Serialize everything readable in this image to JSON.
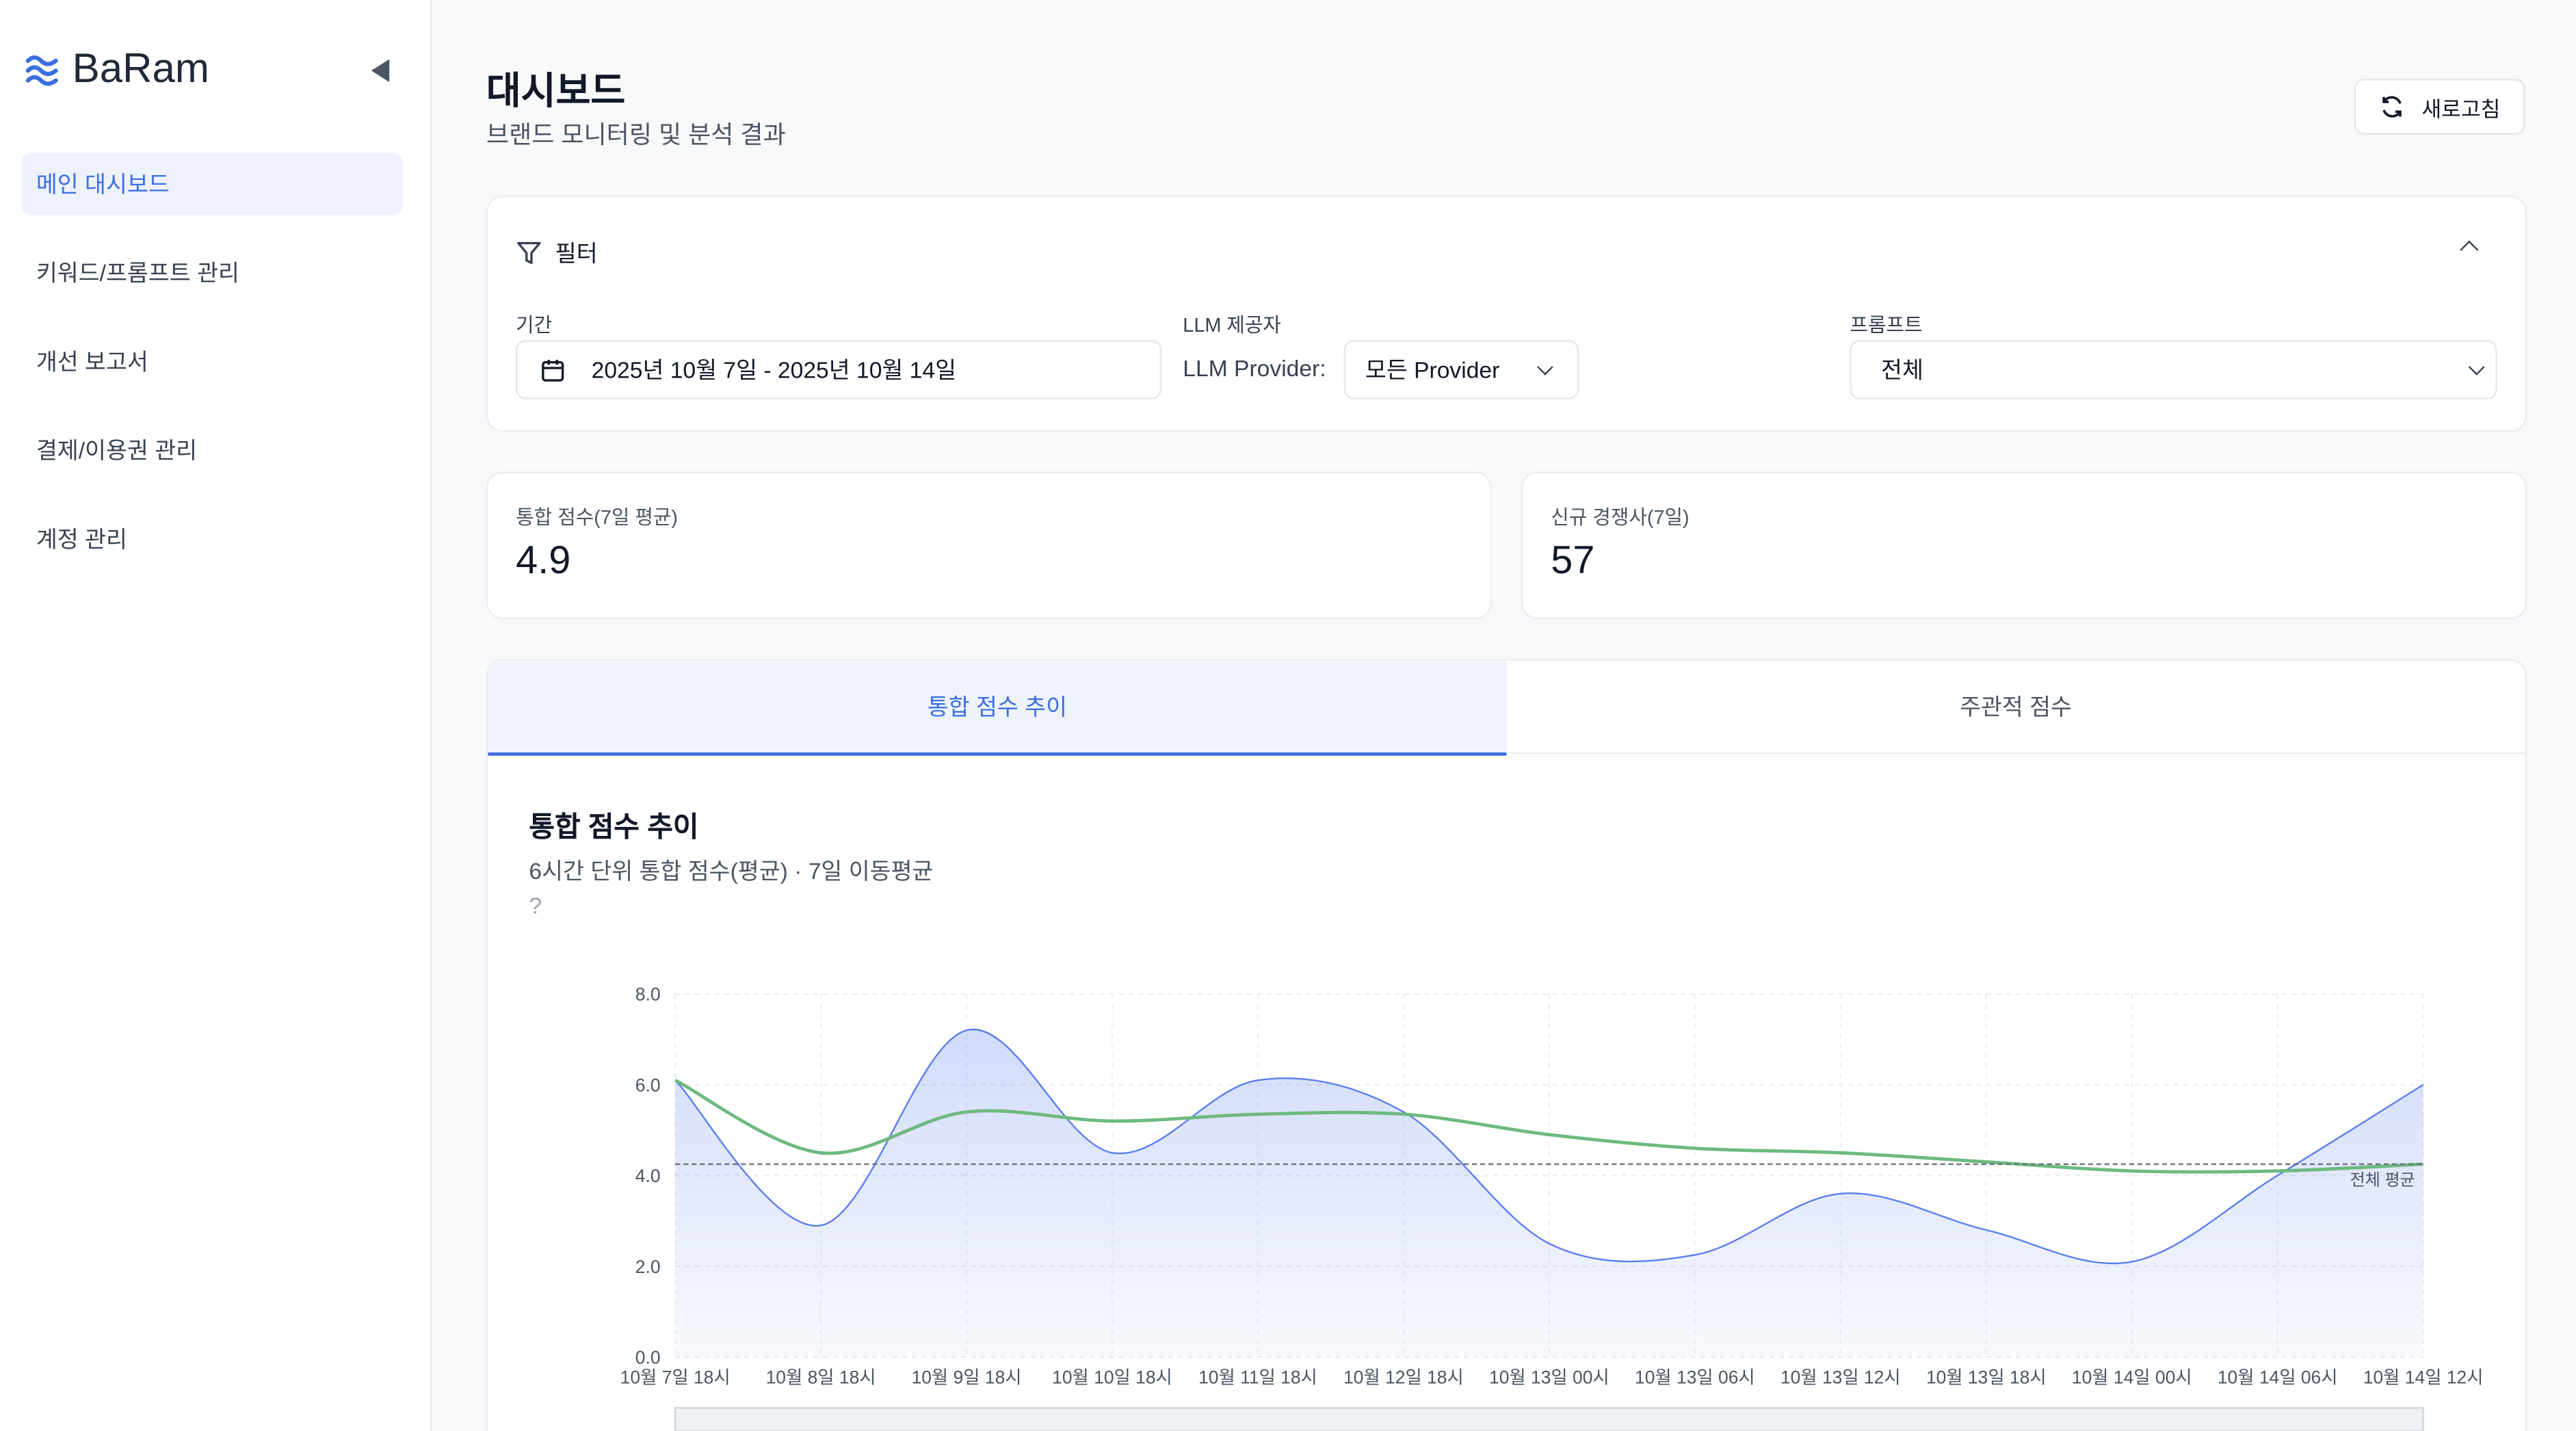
{
  "app": {
    "name": "BaRam"
  },
  "sidebar": {
    "items": [
      {
        "label": "메인 대시보드",
        "active": true
      },
      {
        "label": "키워드/프롬프트 관리"
      },
      {
        "label": "개선 보고서"
      },
      {
        "label": "결제/이용권 관리"
      },
      {
        "label": "계정 관리"
      }
    ]
  },
  "header": {
    "title": "대시보드",
    "subtitle": "브랜드 모니터링 및 분석 결과",
    "refresh_label": "새로고침"
  },
  "filter": {
    "title": "필터",
    "period_label": "기간",
    "period_value": "2025년 10월 7일 - 2025년 10월 14일",
    "llm_label": "LLM 제공자",
    "llm_inline_label": "LLM Provider:",
    "llm_value": "모든 Provider",
    "prompt_label": "프롬프트",
    "prompt_value": "전체"
  },
  "stats": [
    {
      "label": "통합 점수(7일 평균)",
      "value": "4.9"
    },
    {
      "label": "신규 경쟁사(7일)",
      "value": "57"
    }
  ],
  "tabs": [
    {
      "label": "통합 점수 추이",
      "active": true
    },
    {
      "label": "주관적 점수"
    }
  ],
  "chart": {
    "title": "통합 점수 추이",
    "subtitle": "6시간 단위 통합 점수(평균) · 7일 이동평균",
    "help": "?"
  },
  "chart_data": {
    "type": "line",
    "x": [
      "10월 7일 18시",
      "10월 8일 18시",
      "10월 9일 18시",
      "10월 10일 18시",
      "10월 11일 18시",
      "10월 12일 18시",
      "10월 13일 00시",
      "10월 13일 06시",
      "10월 13일 12시",
      "10월 13일 18시",
      "10월 14일 00시",
      "10월 14일 06시",
      "10월 14일 12시"
    ],
    "series": [
      {
        "values": [
          6.1,
          2.9,
          7.2,
          4.5,
          6.1,
          5.4,
          2.5,
          2.25,
          3.6,
          2.8,
          2.1,
          4.0,
          6.0
        ],
        "color": "#5b7ff0",
        "area": true
      },
      {
        "values": [
          6.1,
          4.5,
          5.4,
          5.2,
          5.35,
          5.35,
          4.9,
          4.6,
          4.5,
          4.3,
          4.1,
          4.1,
          4.25
        ],
        "color": "#6dba7f"
      }
    ],
    "reference_line": {
      "label": "전체 평균",
      "value": 4.25,
      "color": "#6b7280"
    },
    "yticks": [
      "0.0",
      "2.0",
      "4.0",
      "6.0",
      "8.0"
    ],
    "ylim": [
      0,
      8
    ],
    "grid": true
  }
}
